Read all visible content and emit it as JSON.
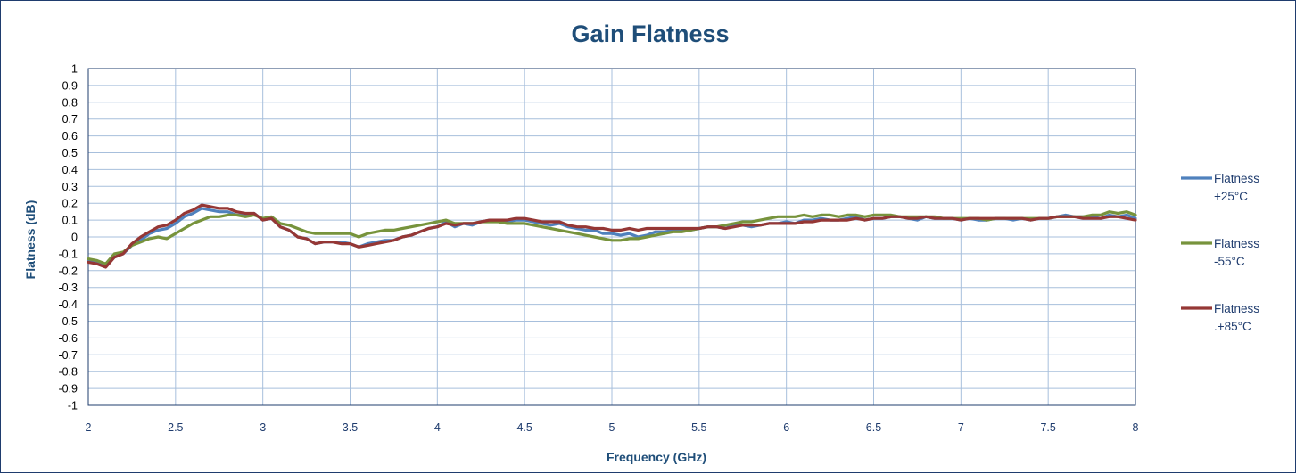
{
  "chart_data": {
    "type": "line",
    "title": "Gain Flatness",
    "xlabel": "Frequency (GHz)",
    "ylabel": "Flatness (dB)",
    "xlim": [
      2,
      8
    ],
    "ylim": [
      -1,
      1
    ],
    "xticks": [
      "2",
      "2.5",
      "3",
      "3.5",
      "4",
      "4.5",
      "5",
      "5.5",
      "6",
      "6.5",
      "7",
      "7.5",
      "8"
    ],
    "yticks": [
      "1",
      "0.9",
      "0.8",
      "0.7",
      "0.6",
      "0.5",
      "0.4",
      "0.3",
      "0.2",
      "0.1",
      "0",
      "-0.1",
      "-0.2",
      "-0.3",
      "-0.4",
      "-0.5",
      "-0.6",
      "-0.7",
      "-0.8",
      "-0.9",
      "-1"
    ],
    "grid": true,
    "legend_position": "right",
    "series": [
      {
        "name": "Flatness +25°C",
        "legend_lines": [
          "Flatness",
          "+25°C"
        ],
        "color": "#4f81bd",
        "x": [
          2.0,
          2.05,
          2.1,
          2.15,
          2.2,
          2.25,
          2.3,
          2.35,
          2.4,
          2.45,
          2.5,
          2.55,
          2.6,
          2.65,
          2.7,
          2.75,
          2.8,
          2.85,
          2.9,
          2.95,
          3.0,
          3.05,
          3.1,
          3.15,
          3.2,
          3.25,
          3.3,
          3.35,
          3.4,
          3.45,
          3.5,
          3.55,
          3.6,
          3.65,
          3.7,
          3.75,
          3.8,
          3.85,
          3.9,
          3.95,
          4.0,
          4.05,
          4.1,
          4.15,
          4.2,
          4.25,
          4.3,
          4.35,
          4.4,
          4.45,
          4.5,
          4.55,
          4.6,
          4.65,
          4.7,
          4.75,
          4.8,
          4.85,
          4.9,
          4.95,
          5.0,
          5.05,
          5.1,
          5.15,
          5.2,
          5.25,
          5.3,
          5.35,
          5.4,
          5.45,
          5.5,
          5.55,
          5.6,
          5.65,
          5.7,
          5.75,
          5.8,
          5.85,
          5.9,
          5.95,
          6.0,
          6.05,
          6.1,
          6.15,
          6.2,
          6.25,
          6.3,
          6.35,
          6.4,
          6.45,
          6.5,
          6.55,
          6.6,
          6.65,
          6.7,
          6.75,
          6.8,
          6.85,
          6.9,
          6.95,
          7.0,
          7.05,
          7.1,
          7.15,
          7.2,
          7.25,
          7.3,
          7.35,
          7.4,
          7.45,
          7.5,
          7.55,
          7.6,
          7.65,
          7.7,
          7.75,
          7.8,
          7.85,
          7.9,
          7.95,
          8.0
        ],
        "y": [
          -0.14,
          -0.15,
          -0.17,
          -0.12,
          -0.1,
          -0.05,
          -0.02,
          0.02,
          0.04,
          0.05,
          0.08,
          0.12,
          0.14,
          0.17,
          0.16,
          0.15,
          0.15,
          0.13,
          0.13,
          0.14,
          0.1,
          0.11,
          0.06,
          0.04,
          0.0,
          -0.01,
          -0.04,
          -0.03,
          -0.03,
          -0.03,
          -0.04,
          -0.06,
          -0.04,
          -0.03,
          -0.02,
          -0.02,
          0.0,
          0.01,
          0.03,
          0.05,
          0.06,
          0.09,
          0.06,
          0.08,
          0.07,
          0.09,
          0.1,
          0.1,
          0.09,
          0.1,
          0.1,
          0.09,
          0.08,
          0.07,
          0.08,
          0.06,
          0.05,
          0.04,
          0.04,
          0.02,
          0.02,
          0.01,
          0.02,
          0.0,
          0.01,
          0.03,
          0.03,
          0.04,
          0.04,
          0.04,
          0.05,
          0.06,
          0.06,
          0.05,
          0.07,
          0.07,
          0.06,
          0.07,
          0.08,
          0.08,
          0.09,
          0.08,
          0.1,
          0.1,
          0.11,
          0.1,
          0.1,
          0.11,
          0.12,
          0.1,
          0.11,
          0.11,
          0.12,
          0.12,
          0.11,
          0.1,
          0.12,
          0.11,
          0.11,
          0.11,
          0.1,
          0.11,
          0.1,
          0.1,
          0.11,
          0.11,
          0.1,
          0.11,
          0.1,
          0.11,
          0.11,
          0.12,
          0.13,
          0.12,
          0.12,
          0.12,
          0.11,
          0.13,
          0.12,
          0.13,
          0.11
        ]
      },
      {
        "name": "Flatness -55°C",
        "legend_lines": [
          "Flatness",
          "-55°C"
        ],
        "color": "#77933c",
        "x": [
          2.0,
          2.05,
          2.1,
          2.15,
          2.2,
          2.25,
          2.3,
          2.35,
          2.4,
          2.45,
          2.5,
          2.55,
          2.6,
          2.65,
          2.7,
          2.75,
          2.8,
          2.85,
          2.9,
          2.95,
          3.0,
          3.05,
          3.1,
          3.15,
          3.2,
          3.25,
          3.3,
          3.35,
          3.4,
          3.45,
          3.5,
          3.55,
          3.6,
          3.65,
          3.7,
          3.75,
          3.8,
          3.85,
          3.9,
          3.95,
          4.0,
          4.05,
          4.1,
          4.15,
          4.2,
          4.25,
          4.3,
          4.35,
          4.4,
          4.45,
          4.5,
          4.55,
          4.6,
          4.65,
          4.7,
          4.75,
          4.8,
          4.85,
          4.9,
          4.95,
          5.0,
          5.05,
          5.1,
          5.15,
          5.2,
          5.25,
          5.3,
          5.35,
          5.4,
          5.45,
          5.5,
          5.55,
          5.6,
          5.65,
          5.7,
          5.75,
          5.8,
          5.85,
          5.9,
          5.95,
          6.0,
          6.05,
          6.1,
          6.15,
          6.2,
          6.25,
          6.3,
          6.35,
          6.4,
          6.45,
          6.5,
          6.55,
          6.6,
          6.65,
          6.7,
          6.75,
          6.8,
          6.85,
          6.9,
          6.95,
          7.0,
          7.05,
          7.1,
          7.15,
          7.2,
          7.25,
          7.3,
          7.35,
          7.4,
          7.45,
          7.5,
          7.55,
          7.6,
          7.65,
          7.7,
          7.75,
          7.8,
          7.85,
          7.9,
          7.95,
          8.0
        ],
        "y": [
          -0.13,
          -0.14,
          -0.16,
          -0.1,
          -0.09,
          -0.05,
          -0.03,
          -0.01,
          0.0,
          -0.01,
          0.02,
          0.05,
          0.08,
          0.1,
          0.12,
          0.12,
          0.13,
          0.13,
          0.12,
          0.13,
          0.11,
          0.12,
          0.08,
          0.07,
          0.05,
          0.03,
          0.02,
          0.02,
          0.02,
          0.02,
          0.02,
          0.0,
          0.02,
          0.03,
          0.04,
          0.04,
          0.05,
          0.06,
          0.07,
          0.08,
          0.09,
          0.1,
          0.08,
          0.08,
          0.08,
          0.09,
          0.09,
          0.09,
          0.08,
          0.08,
          0.08,
          0.07,
          0.06,
          0.05,
          0.04,
          0.03,
          0.02,
          0.01,
          0.0,
          -0.01,
          -0.02,
          -0.02,
          -0.01,
          -0.01,
          0.0,
          0.01,
          0.02,
          0.03,
          0.03,
          0.04,
          0.05,
          0.06,
          0.06,
          0.07,
          0.08,
          0.09,
          0.09,
          0.1,
          0.11,
          0.12,
          0.12,
          0.12,
          0.13,
          0.12,
          0.13,
          0.13,
          0.12,
          0.13,
          0.13,
          0.12,
          0.13,
          0.13,
          0.13,
          0.12,
          0.12,
          0.12,
          0.12,
          0.12,
          0.11,
          0.11,
          0.11,
          0.11,
          0.11,
          0.1,
          0.11,
          0.11,
          0.11,
          0.11,
          0.11,
          0.11,
          0.11,
          0.12,
          0.12,
          0.12,
          0.12,
          0.13,
          0.13,
          0.15,
          0.14,
          0.15,
          0.13
        ]
      },
      {
        "name": "Flatness .+85°C",
        "legend_lines": [
          "Flatness",
          ".+85°C"
        ],
        "color": "#953735",
        "x": [
          2.0,
          2.05,
          2.1,
          2.15,
          2.2,
          2.25,
          2.3,
          2.35,
          2.4,
          2.45,
          2.5,
          2.55,
          2.6,
          2.65,
          2.7,
          2.75,
          2.8,
          2.85,
          2.9,
          2.95,
          3.0,
          3.05,
          3.1,
          3.15,
          3.2,
          3.25,
          3.3,
          3.35,
          3.4,
          3.45,
          3.5,
          3.55,
          3.6,
          3.65,
          3.7,
          3.75,
          3.8,
          3.85,
          3.9,
          3.95,
          4.0,
          4.05,
          4.1,
          4.15,
          4.2,
          4.25,
          4.3,
          4.35,
          4.4,
          4.45,
          4.5,
          4.55,
          4.6,
          4.65,
          4.7,
          4.75,
          4.8,
          4.85,
          4.9,
          4.95,
          5.0,
          5.05,
          5.1,
          5.15,
          5.2,
          5.25,
          5.3,
          5.35,
          5.4,
          5.45,
          5.5,
          5.55,
          5.6,
          5.65,
          5.7,
          5.75,
          5.8,
          5.85,
          5.9,
          5.95,
          6.0,
          6.05,
          6.1,
          6.15,
          6.2,
          6.25,
          6.3,
          6.35,
          6.4,
          6.45,
          6.5,
          6.55,
          6.6,
          6.65,
          6.7,
          6.75,
          6.8,
          6.85,
          6.9,
          6.95,
          7.0,
          7.05,
          7.1,
          7.15,
          7.2,
          7.25,
          7.3,
          7.35,
          7.4,
          7.45,
          7.5,
          7.55,
          7.6,
          7.65,
          7.7,
          7.75,
          7.8,
          7.85,
          7.9,
          7.95,
          8.0
        ],
        "y": [
          -0.15,
          -0.16,
          -0.18,
          -0.12,
          -0.1,
          -0.04,
          0.0,
          0.03,
          0.06,
          0.07,
          0.1,
          0.14,
          0.16,
          0.19,
          0.18,
          0.17,
          0.17,
          0.15,
          0.14,
          0.14,
          0.1,
          0.11,
          0.06,
          0.04,
          0.0,
          -0.01,
          -0.04,
          -0.03,
          -0.03,
          -0.04,
          -0.04,
          -0.06,
          -0.05,
          -0.04,
          -0.03,
          -0.02,
          0.0,
          0.01,
          0.03,
          0.05,
          0.06,
          0.08,
          0.07,
          0.08,
          0.08,
          0.09,
          0.1,
          0.1,
          0.1,
          0.11,
          0.11,
          0.1,
          0.09,
          0.09,
          0.09,
          0.07,
          0.06,
          0.06,
          0.05,
          0.05,
          0.04,
          0.04,
          0.05,
          0.04,
          0.05,
          0.05,
          0.05,
          0.05,
          0.05,
          0.05,
          0.05,
          0.06,
          0.06,
          0.05,
          0.06,
          0.07,
          0.07,
          0.07,
          0.08,
          0.08,
          0.08,
          0.08,
          0.09,
          0.09,
          0.1,
          0.1,
          0.1,
          0.1,
          0.11,
          0.1,
          0.11,
          0.11,
          0.12,
          0.12,
          0.11,
          0.11,
          0.12,
          0.11,
          0.11,
          0.11,
          0.1,
          0.11,
          0.11,
          0.11,
          0.11,
          0.11,
          0.11,
          0.11,
          0.1,
          0.11,
          0.11,
          0.12,
          0.12,
          0.12,
          0.11,
          0.11,
          0.11,
          0.12,
          0.12,
          0.11,
          0.1
        ]
      }
    ]
  }
}
